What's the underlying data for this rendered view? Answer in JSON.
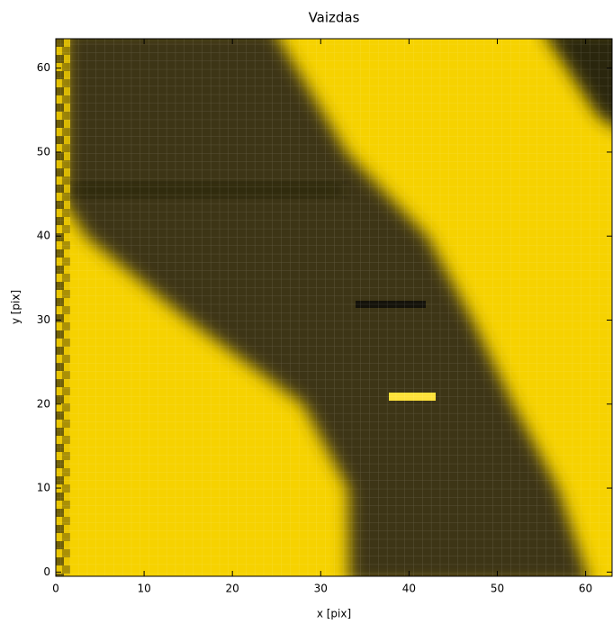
{
  "chart_data": {
    "type": "image",
    "title": "Vaizdas",
    "x_label": "x [pix]",
    "y_label": "y [pix]",
    "xlim": [
      0,
      63
    ],
    "ylim": [
      -0.5,
      63.5
    ],
    "xticks": [
      0,
      10,
      20,
      30,
      40,
      50,
      60
    ],
    "yticks": [
      0,
      10,
      20,
      30,
      40,
      50,
      60
    ]
  }
}
